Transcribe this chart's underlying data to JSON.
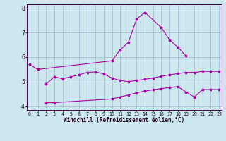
{
  "xlabel": "Windchill (Refroidissement éolien,°C)",
  "background_color": "#cce8ee",
  "line_color": "#aa00aa",
  "grid_color": "#99aacc",
  "x": [
    0,
    1,
    2,
    3,
    4,
    5,
    6,
    7,
    8,
    9,
    10,
    11,
    12,
    13,
    14,
    15,
    16,
    17,
    18,
    19,
    20,
    21,
    22,
    23
  ],
  "line1_x": [
    0,
    1,
    10,
    11,
    12,
    13,
    14,
    16,
    17,
    18,
    19
  ],
  "line1_y": [
    5.7,
    5.5,
    5.85,
    6.3,
    6.6,
    7.55,
    7.82,
    7.2,
    6.7,
    6.4,
    6.05
  ],
  "line2_x": [
    2,
    3,
    4,
    5,
    6,
    7,
    8,
    9,
    10,
    11,
    12,
    13,
    14,
    15,
    16,
    17,
    18,
    19,
    20,
    21,
    22,
    23
  ],
  "line2_y": [
    4.9,
    5.2,
    5.12,
    5.2,
    5.28,
    5.38,
    5.4,
    5.32,
    5.15,
    5.05,
    5.0,
    5.05,
    5.1,
    5.15,
    5.22,
    5.28,
    5.33,
    5.38,
    5.38,
    5.42,
    5.42,
    5.42
  ],
  "line3_x": [
    2,
    3,
    10,
    11,
    12,
    13,
    14,
    15,
    16,
    17,
    18,
    19,
    20,
    21,
    22,
    23
  ],
  "line3_y": [
    4.15,
    4.15,
    4.3,
    4.38,
    4.46,
    4.55,
    4.62,
    4.67,
    4.72,
    4.76,
    4.8,
    4.58,
    4.38,
    4.68,
    4.68,
    4.68
  ],
  "ylim": [
    3.85,
    8.15
  ],
  "xlim": [
    -0.3,
    23.3
  ],
  "yticks": [
    4,
    5,
    6,
    7,
    8
  ],
  "xticks": [
    0,
    1,
    2,
    3,
    4,
    5,
    6,
    7,
    8,
    9,
    10,
    11,
    12,
    13,
    14,
    15,
    16,
    17,
    18,
    19,
    20,
    21,
    22,
    23
  ]
}
